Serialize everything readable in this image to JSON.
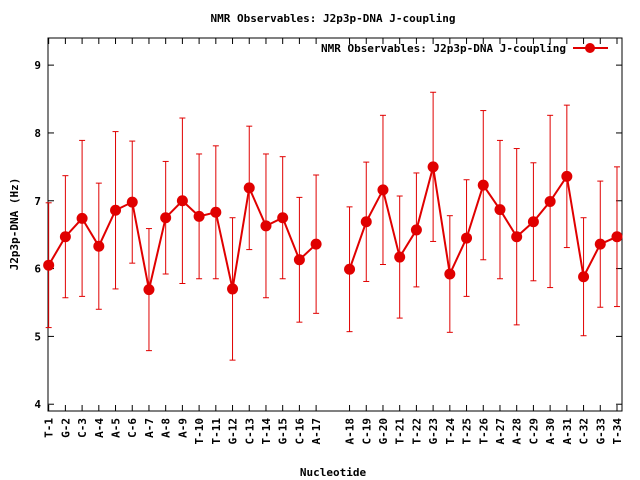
{
  "chart_data": {
    "type": "line",
    "title": "NMR Observables: J2p3p-DNA J-coupling",
    "xlabel": "Nucleotide",
    "ylabel": "J2p3p-DNA (Hz)",
    "ylim": [
      3.9,
      9.4
    ],
    "yticks": [
      4,
      5,
      6,
      7,
      8,
      9
    ],
    "legend_placement": "top-right",
    "grid": false,
    "series": [
      {
        "name": "NMR Observables: J2p3p-DNA J-coupling",
        "color": "#e00000",
        "points": [
          {
            "label": "T-1",
            "pos": 1,
            "y": 6.05,
            "err": 0.92
          },
          {
            "label": "G-2",
            "pos": 2,
            "y": 6.47,
            "err": 0.9
          },
          {
            "label": "C-3",
            "pos": 3,
            "y": 6.74,
            "err": 1.15
          },
          {
            "label": "A-4",
            "pos": 4,
            "y": 6.33,
            "err": 0.93
          },
          {
            "label": "A-5",
            "pos": 5,
            "y": 6.86,
            "err": 1.16
          },
          {
            "label": "C-6",
            "pos": 6,
            "y": 6.98,
            "err": 0.9
          },
          {
            "label": "A-7",
            "pos": 7,
            "y": 5.69,
            "err": 0.9
          },
          {
            "label": "A-8",
            "pos": 8,
            "y": 6.75,
            "err": 0.83
          },
          {
            "label": "A-9",
            "pos": 9,
            "y": 7.0,
            "err": 1.22
          },
          {
            "label": "T-10",
            "pos": 10,
            "y": 6.77,
            "err": 0.92
          },
          {
            "label": "T-11",
            "pos": 11,
            "y": 6.83,
            "err": 0.98
          },
          {
            "label": "G-12",
            "pos": 12,
            "y": 5.7,
            "err": 1.05
          },
          {
            "label": "C-13",
            "pos": 13,
            "y": 7.19,
            "err": 0.91
          },
          {
            "label": "T-14",
            "pos": 14,
            "y": 6.63,
            "err": 1.06
          },
          {
            "label": "G-15",
            "pos": 15,
            "y": 6.75,
            "err": 0.9
          },
          {
            "label": "C-16",
            "pos": 16,
            "y": 6.13,
            "err": 0.92
          },
          {
            "label": "A-17",
            "pos": 17,
            "y": 6.36,
            "err": 1.02
          },
          {
            "label": "A-18",
            "pos": 19,
            "y": 5.99,
            "err": 0.92
          },
          {
            "label": "C-19",
            "pos": 20,
            "y": 6.69,
            "err": 0.88
          },
          {
            "label": "G-20",
            "pos": 21,
            "y": 7.16,
            "err": 1.1
          },
          {
            "label": "T-21",
            "pos": 22,
            "y": 6.17,
            "err": 0.9
          },
          {
            "label": "T-22",
            "pos": 23,
            "y": 6.57,
            "err": 0.84
          },
          {
            "label": "G-23",
            "pos": 24,
            "y": 7.5,
            "err": 1.1
          },
          {
            "label": "T-24",
            "pos": 25,
            "y": 5.92,
            "err": 0.86
          },
          {
            "label": "T-25",
            "pos": 26,
            "y": 6.45,
            "err": 0.86
          },
          {
            "label": "T-26",
            "pos": 27,
            "y": 7.23,
            "err": 1.1
          },
          {
            "label": "A-27",
            "pos": 28,
            "y": 6.87,
            "err": 1.02
          },
          {
            "label": "A-28",
            "pos": 29,
            "y": 6.47,
            "err": 1.3
          },
          {
            "label": "C-29",
            "pos": 30,
            "y": 6.69,
            "err": 0.87
          },
          {
            "label": "A-30",
            "pos": 31,
            "y": 6.99,
            "err": 1.27
          },
          {
            "label": "A-31",
            "pos": 32,
            "y": 7.36,
            "err": 1.05
          },
          {
            "label": "C-32",
            "pos": 33,
            "y": 5.88,
            "err": 0.87
          },
          {
            "label": "G-33",
            "pos": 34,
            "y": 6.36,
            "err": 0.93
          },
          {
            "label": "T-34",
            "pos": 35,
            "y": 6.47,
            "err": 1.03
          }
        ]
      }
    ]
  }
}
